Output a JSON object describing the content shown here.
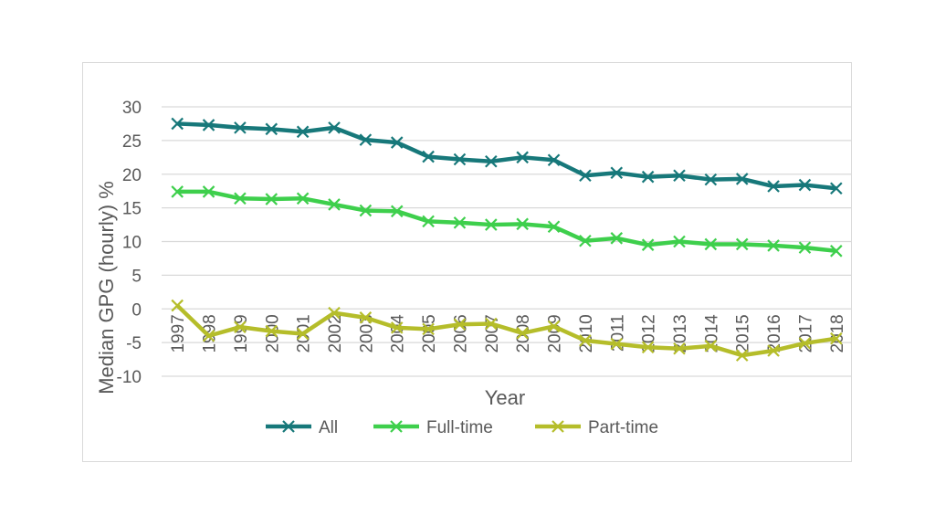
{
  "chart_data": {
    "type": "line",
    "title": "",
    "xlabel": "Year",
    "ylabel": "Median GPG (hourly) %",
    "ylim": [
      -10,
      30
    ],
    "yticks": [
      30,
      25,
      20,
      15,
      10,
      5,
      0,
      -5,
      -10
    ],
    "grid": true,
    "legend_position": "bottom",
    "x": [
      "1997",
      "1998",
      "1999",
      "2000",
      "2001",
      "2002",
      "2003",
      "2004",
      "2005",
      "2006",
      "2007",
      "2008",
      "2009",
      "2010",
      "2011",
      "2012",
      "2013",
      "2014",
      "2015",
      "2016",
      "2017",
      "2018"
    ],
    "series": [
      {
        "name": "All",
        "color": "#17787a",
        "values": [
          27.5,
          27.3,
          26.9,
          26.7,
          26.3,
          26.9,
          25.1,
          24.7,
          22.6,
          22.2,
          21.9,
          22.5,
          22.1,
          19.8,
          20.2,
          19.6,
          19.8,
          19.2,
          19.3,
          18.2,
          18.4,
          17.9
        ]
      },
      {
        "name": "Full-time",
        "color": "#3ecf4c",
        "values": [
          17.4,
          17.4,
          16.4,
          16.3,
          16.4,
          15.5,
          14.6,
          14.5,
          13.0,
          12.8,
          12.5,
          12.6,
          12.2,
          10.1,
          10.5,
          9.5,
          10.0,
          9.6,
          9.6,
          9.4,
          9.1,
          8.6
        ]
      },
      {
        "name": "Part-time",
        "color": "#b5bd2a",
        "values": [
          0.5,
          -4.0,
          -2.7,
          -3.3,
          -3.7,
          -0.6,
          -1.3,
          -2.8,
          -3.0,
          -2.3,
          -2.2,
          -3.6,
          -2.6,
          -4.7,
          -5.2,
          -5.7,
          -5.9,
          -5.5,
          -6.9,
          -6.2,
          -5.1,
          -4.4
        ]
      }
    ]
  }
}
